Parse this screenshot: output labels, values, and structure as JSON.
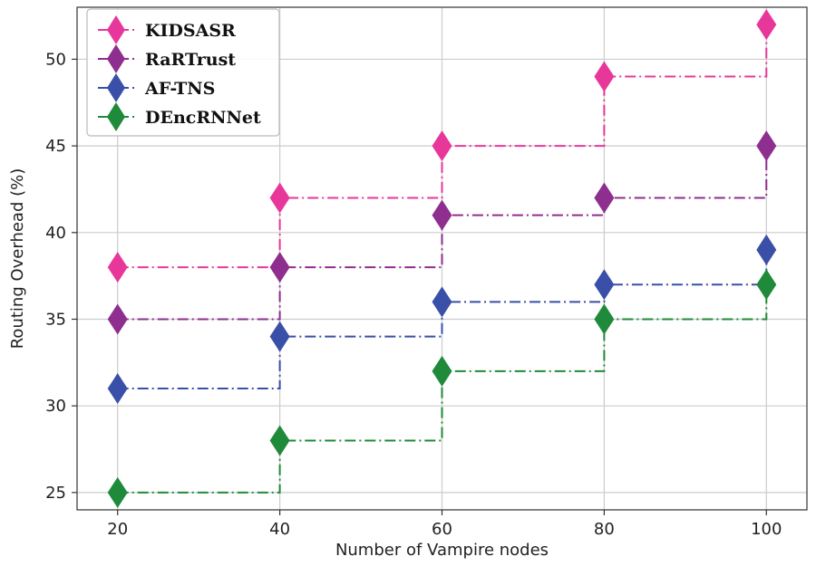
{
  "chart_data": {
    "type": "line",
    "step": "post",
    "x": [
      20,
      40,
      60,
      80,
      100
    ],
    "xlabel": "Number of Vampire nodes",
    "ylabel": "Routing Overhead (%)",
    "xlim": [
      15,
      105
    ],
    "ylim": [
      24,
      53
    ],
    "xticks": [
      20,
      40,
      60,
      80,
      100
    ],
    "yticks": [
      25,
      30,
      35,
      40,
      45,
      50
    ],
    "grid": true,
    "legend_position": "top-left",
    "series": [
      {
        "name": "KIDSASR",
        "values": [
          38,
          42,
          45,
          49,
          52
        ],
        "color": "#e8379a"
      },
      {
        "name": "RaRTrust",
        "values": [
          35,
          38,
          41,
          42,
          45
        ],
        "color": "#8e2e8e"
      },
      {
        "name": "AF-TNS",
        "values": [
          31,
          34,
          36,
          37,
          39
        ],
        "color": "#3a4fa8"
      },
      {
        "name": "DEncRNNet",
        "values": [
          25,
          28,
          32,
          35,
          37
        ],
        "color": "#1f8a3a"
      }
    ]
  }
}
